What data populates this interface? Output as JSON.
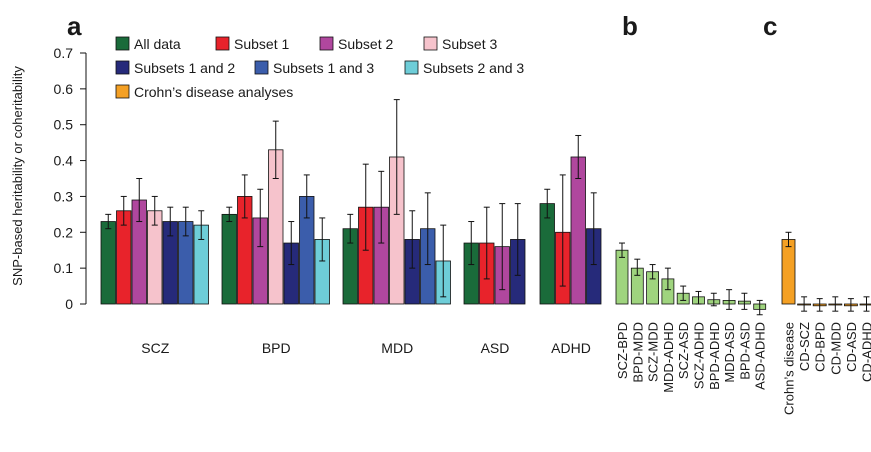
{
  "panel_letters": [
    "a",
    "b",
    "c"
  ],
  "legend_colors": {
    "All data": "#1a6b3a",
    "Subset 1": "#e8232b",
    "Subset 2": "#b0479e",
    "Subset 3": "#f6c3cc",
    "Subsets 1 and 2": "#262a7a",
    "Subsets 1 and 3": "#3b5dab",
    "Subsets 2 and 3": "#6ecdd8",
    "Crohn’s disease analyses": "#f4a024",
    "coheritability": "#9fd47e"
  },
  "chart_data": [
    {
      "type": "bar",
      "panel": "a",
      "ylabel": "SNP-based heritability or coheritability",
      "ylim": [
        0,
        0.7
      ],
      "yticks": [
        "0",
        "0.1",
        "0.2",
        "0.3",
        "0.4",
        "0.5",
        "0.6",
        "0.7"
      ],
      "grid": false,
      "legend": "top-left",
      "legend_entries": [
        "All data",
        "Subset 1",
        "Subset 2",
        "Subset 3",
        "Subsets 1 and 2",
        "Subsets 1 and 3",
        "Subsets 2 and 3",
        "Crohn’s disease analyses"
      ],
      "categories": [
        "SCZ",
        "BPD",
        "MDD",
        "ASD",
        "ADHD"
      ],
      "groups": [
        {
          "category": "SCZ",
          "bars": [
            {
              "series": "All data",
              "value": 0.23,
              "err": [
                0.21,
                0.25
              ]
            },
            {
              "series": "Subset 1",
              "value": 0.26,
              "err": [
                0.22,
                0.3
              ]
            },
            {
              "series": "Subset 2",
              "value": 0.29,
              "err": [
                0.23,
                0.35
              ]
            },
            {
              "series": "Subset 3",
              "value": 0.26,
              "err": [
                0.22,
                0.3
              ]
            },
            {
              "series": "Subsets 1 and 2",
              "value": 0.23,
              "err": [
                0.19,
                0.27
              ]
            },
            {
              "series": "Subsets 1 and 3",
              "value": 0.23,
              "err": [
                0.19,
                0.27
              ]
            },
            {
              "series": "Subsets 2 and 3",
              "value": 0.22,
              "err": [
                0.18,
                0.26
              ]
            }
          ]
        },
        {
          "category": "BPD",
          "bars": [
            {
              "series": "All data",
              "value": 0.25,
              "err": [
                0.23,
                0.27
              ]
            },
            {
              "series": "Subset 1",
              "value": 0.3,
              "err": [
                0.24,
                0.36
              ]
            },
            {
              "series": "Subset 2",
              "value": 0.24,
              "err": [
                0.16,
                0.32
              ]
            },
            {
              "series": "Subset 3",
              "value": 0.43,
              "err": [
                0.35,
                0.51
              ]
            },
            {
              "series": "Subsets 1 and 2",
              "value": 0.17,
              "err": [
                0.11,
                0.23
              ]
            },
            {
              "series": "Subsets 1 and 3",
              "value": 0.3,
              "err": [
                0.24,
                0.36
              ]
            },
            {
              "series": "Subsets 2 and 3",
              "value": 0.18,
              "err": [
                0.12,
                0.24
              ]
            }
          ]
        },
        {
          "category": "MDD",
          "bars": [
            {
              "series": "All data",
              "value": 0.21,
              "err": [
                0.17,
                0.25
              ]
            },
            {
              "series": "Subset 1",
              "value": 0.27,
              "err": [
                0.15,
                0.39
              ]
            },
            {
              "series": "Subset 2",
              "value": 0.27,
              "err": [
                0.17,
                0.37
              ]
            },
            {
              "series": "Subset 3",
              "value": 0.41,
              "err": [
                0.25,
                0.57
              ]
            },
            {
              "series": "Subsets 1 and 2",
              "value": 0.18,
              "err": [
                0.1,
                0.26
              ]
            },
            {
              "series": "Subsets 1 and 3",
              "value": 0.21,
              "err": [
                0.11,
                0.31
              ]
            },
            {
              "series": "Subsets 2 and 3",
              "value": 0.12,
              "err": [
                0.02,
                0.22
              ]
            }
          ]
        },
        {
          "category": "ASD",
          "bars": [
            {
              "series": "All data",
              "value": 0.17,
              "err": [
                0.11,
                0.23
              ]
            },
            {
              "series": "Subset 1",
              "value": 0.17,
              "err": [
                0.07,
                0.27
              ]
            },
            {
              "series": "Subset 2",
              "value": 0.16,
              "err": [
                0.04,
                0.28
              ]
            },
            {
              "series": "Subsets 1 and 2",
              "value": 0.18,
              "err": [
                0.08,
                0.28
              ]
            }
          ]
        },
        {
          "category": "ADHD",
          "bars": [
            {
              "series": "All data",
              "value": 0.28,
              "err": [
                0.24,
                0.32
              ]
            },
            {
              "series": "Subset 1",
              "value": 0.2,
              "err": [
                0.05,
                0.36
              ]
            },
            {
              "series": "Subset 2",
              "value": 0.41,
              "err": [
                0.35,
                0.47
              ]
            },
            {
              "series": "Subsets 1 and 2",
              "value": 0.21,
              "err": [
                0.11,
                0.31
              ]
            }
          ]
        }
      ]
    },
    {
      "type": "bar",
      "panel": "b",
      "ylim": [
        0,
        0.7
      ],
      "categories": [
        "SCZ-BPD",
        "BPD-MDD",
        "SCZ-MDD",
        "MDD-ADHD",
        "SCZ-ASD",
        "SCZ-ADHD",
        "BPD-ADHD",
        "MDD-ASD",
        "BPD-ASD",
        "ASD-ADHD"
      ],
      "values": [
        0.15,
        0.1,
        0.09,
        0.07,
        0.03,
        0.02,
        0.012,
        0.01,
        0.008,
        -0.015
      ],
      "err": [
        [
          0.13,
          0.17
        ],
        [
          0.08,
          0.125
        ],
        [
          0.07,
          0.11
        ],
        [
          0.04,
          0.1
        ],
        [
          0.01,
          0.05
        ],
        [
          0.0,
          0.035
        ],
        [
          -0.005,
          0.03
        ],
        [
          -0.015,
          0.04
        ],
        [
          -0.015,
          0.03
        ],
        [
          -0.03,
          0.01
        ]
      ]
    },
    {
      "type": "bar",
      "panel": "c",
      "ylim": [
        0,
        0.7
      ],
      "categories": [
        "Crohn’s disease",
        "CD-SCZ",
        "CD-BPD",
        "CD-MDD",
        "CD-ASD",
        "CD-ADHD"
      ],
      "values": [
        0.18,
        0.0,
        -0.005,
        0.0,
        -0.005,
        0.0
      ],
      "err": [
        [
          0.16,
          0.2
        ],
        [
          -0.02,
          0.02
        ],
        [
          -0.02,
          0.015
        ],
        [
          -0.02,
          0.02
        ],
        [
          -0.02,
          0.015
        ],
        [
          -0.02,
          0.02
        ]
      ]
    }
  ]
}
